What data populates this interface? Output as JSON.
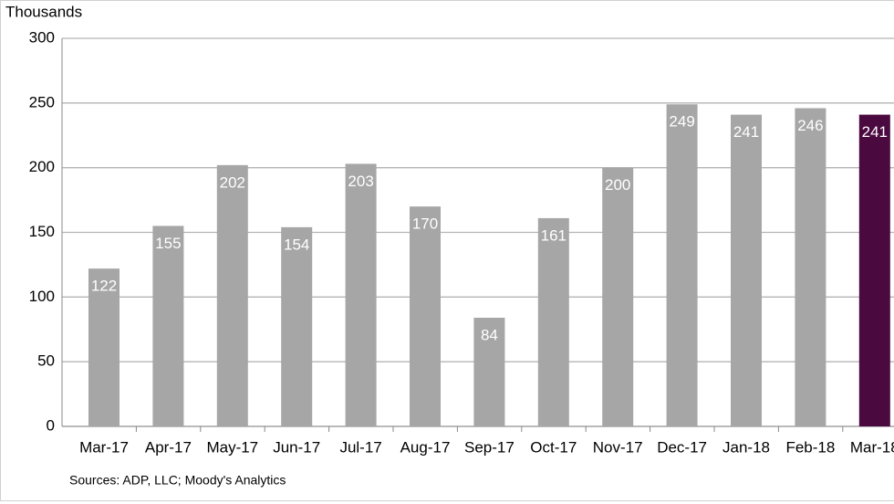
{
  "chart_data": {
    "type": "bar",
    "axis_label": "Thousands",
    "source": "Sources: ADP, LLC; Moody's Analytics",
    "categories": [
      "Mar-17",
      "Apr-17",
      "May-17",
      "Jun-17",
      "Jul-17",
      "Aug-17",
      "Sep-17",
      "Oct-17",
      "Nov-17",
      "Dec-17",
      "Jan-18",
      "Feb-18",
      "Mar-18"
    ],
    "values": [
      122,
      155,
      202,
      154,
      203,
      170,
      84,
      161,
      200,
      249,
      241,
      246,
      241
    ],
    "colors": [
      "#a6a6a6",
      "#a6a6a6",
      "#a6a6a6",
      "#a6a6a6",
      "#a6a6a6",
      "#a6a6a6",
      "#a6a6a6",
      "#a6a6a6",
      "#a6a6a6",
      "#a6a6a6",
      "#a6a6a6",
      "#a6a6a6",
      "#4b0a3f"
    ],
    "ylim": [
      0,
      300
    ],
    "yticks": [
      0,
      50,
      100,
      150,
      200,
      250,
      300
    ],
    "grid": true
  }
}
